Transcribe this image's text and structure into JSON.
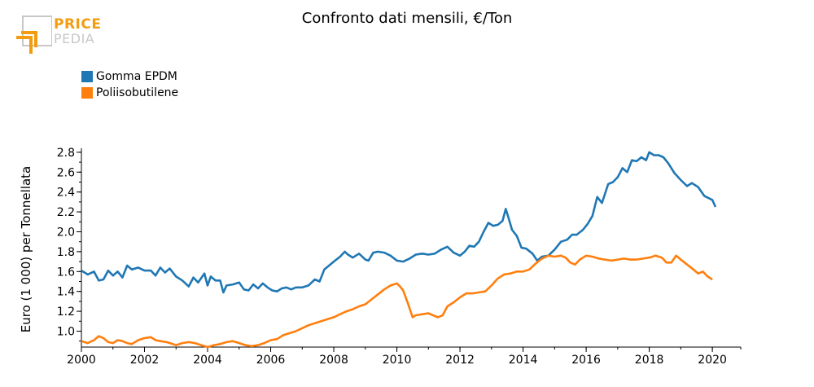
{
  "logo": {
    "line1": "PRICE",
    "line2": "PEDIA"
  },
  "chart_data": {
    "type": "line",
    "title": "Confronto dati mensili, €/Ton",
    "xlabel": "",
    "ylabel": "Euro (1 000) per Tonnellata",
    "xlim": [
      2000,
      2020.9
    ],
    "ylim": [
      0.84,
      2.84
    ],
    "x_ticks": [
      "2000",
      "2002",
      "2004",
      "2006",
      "2008",
      "2010",
      "2012",
      "2014",
      "2016",
      "2018",
      "2020"
    ],
    "y_ticks": [
      "1.0",
      "1.2",
      "1.4",
      "1.6",
      "1.8",
      "2.0",
      "2.2",
      "2.4",
      "2.6",
      "2.8"
    ],
    "legend_position": "top-left",
    "grid": false,
    "series": [
      {
        "name": "Gomma EPDM",
        "color": "#1f77b4",
        "points": [
          [
            2000.0,
            1.61
          ],
          [
            2000.2,
            1.57
          ],
          [
            2000.4,
            1.6
          ],
          [
            2000.55,
            1.51
          ],
          [
            2000.7,
            1.52
          ],
          [
            2000.85,
            1.61
          ],
          [
            2001.0,
            1.56
          ],
          [
            2001.15,
            1.6
          ],
          [
            2001.3,
            1.54
          ],
          [
            2001.45,
            1.66
          ],
          [
            2001.6,
            1.62
          ],
          [
            2001.8,
            1.64
          ],
          [
            2002.0,
            1.61
          ],
          [
            2002.2,
            1.61
          ],
          [
            2002.35,
            1.56
          ],
          [
            2002.5,
            1.64
          ],
          [
            2002.65,
            1.59
          ],
          [
            2002.8,
            1.63
          ],
          [
            2003.0,
            1.55
          ],
          [
            2003.2,
            1.51
          ],
          [
            2003.4,
            1.45
          ],
          [
            2003.55,
            1.54
          ],
          [
            2003.7,
            1.49
          ],
          [
            2003.9,
            1.58
          ],
          [
            2004.0,
            1.46
          ],
          [
            2004.1,
            1.55
          ],
          [
            2004.25,
            1.51
          ],
          [
            2004.4,
            1.51
          ],
          [
            2004.5,
            1.39
          ],
          [
            2004.6,
            1.46
          ],
          [
            2004.8,
            1.47
          ],
          [
            2005.0,
            1.49
          ],
          [
            2005.15,
            1.42
          ],
          [
            2005.3,
            1.41
          ],
          [
            2005.45,
            1.47
          ],
          [
            2005.6,
            1.43
          ],
          [
            2005.75,
            1.48
          ],
          [
            2005.9,
            1.44
          ],
          [
            2006.05,
            1.41
          ],
          [
            2006.2,
            1.4
          ],
          [
            2006.35,
            1.43
          ],
          [
            2006.5,
            1.44
          ],
          [
            2006.65,
            1.42
          ],
          [
            2006.8,
            1.44
          ],
          [
            2007.0,
            1.44
          ],
          [
            2007.2,
            1.46
          ],
          [
            2007.4,
            1.52
          ],
          [
            2007.55,
            1.5
          ],
          [
            2007.7,
            1.62
          ],
          [
            2007.85,
            1.66
          ],
          [
            2008.0,
            1.7
          ],
          [
            2008.2,
            1.75
          ],
          [
            2008.35,
            1.8
          ],
          [
            2008.45,
            1.77
          ],
          [
            2008.6,
            1.74
          ],
          [
            2008.8,
            1.78
          ],
          [
            2009.0,
            1.72
          ],
          [
            2009.1,
            1.71
          ],
          [
            2009.25,
            1.79
          ],
          [
            2009.4,
            1.8
          ],
          [
            2009.6,
            1.79
          ],
          [
            2009.8,
            1.76
          ],
          [
            2010.0,
            1.71
          ],
          [
            2010.2,
            1.7
          ],
          [
            2010.4,
            1.73
          ],
          [
            2010.6,
            1.77
          ],
          [
            2010.8,
            1.78
          ],
          [
            2011.0,
            1.77
          ],
          [
            2011.2,
            1.78
          ],
          [
            2011.4,
            1.82
          ],
          [
            2011.6,
            1.85
          ],
          [
            2011.8,
            1.79
          ],
          [
            2012.0,
            1.76
          ],
          [
            2012.15,
            1.8
          ],
          [
            2012.3,
            1.86
          ],
          [
            2012.45,
            1.85
          ],
          [
            2012.6,
            1.9
          ],
          [
            2012.75,
            2.0
          ],
          [
            2012.9,
            2.09
          ],
          [
            2013.05,
            2.06
          ],
          [
            2013.2,
            2.07
          ],
          [
            2013.35,
            2.11
          ],
          [
            2013.45,
            2.23
          ],
          [
            2013.55,
            2.13
          ],
          [
            2013.65,
            2.02
          ],
          [
            2013.8,
            1.96
          ],
          [
            2013.95,
            1.84
          ],
          [
            2014.1,
            1.83
          ],
          [
            2014.3,
            1.78
          ],
          [
            2014.45,
            1.71
          ],
          [
            2014.6,
            1.75
          ],
          [
            2014.8,
            1.76
          ],
          [
            2015.0,
            1.82
          ],
          [
            2015.2,
            1.9
          ],
          [
            2015.4,
            1.92
          ],
          [
            2015.55,
            1.97
          ],
          [
            2015.7,
            1.97
          ],
          [
            2015.9,
            2.02
          ],
          [
            2016.05,
            2.08
          ],
          [
            2016.2,
            2.16
          ],
          [
            2016.35,
            2.35
          ],
          [
            2016.5,
            2.29
          ],
          [
            2016.7,
            2.48
          ],
          [
            2016.85,
            2.5
          ],
          [
            2017.0,
            2.55
          ],
          [
            2017.15,
            2.64
          ],
          [
            2017.3,
            2.6
          ],
          [
            2017.45,
            2.72
          ],
          [
            2017.6,
            2.71
          ],
          [
            2017.75,
            2.75
          ],
          [
            2017.9,
            2.72
          ],
          [
            2018.0,
            2.8
          ],
          [
            2018.15,
            2.77
          ],
          [
            2018.3,
            2.77
          ],
          [
            2018.45,
            2.75
          ],
          [
            2018.6,
            2.69
          ],
          [
            2018.8,
            2.59
          ],
          [
            2019.0,
            2.52
          ],
          [
            2019.2,
            2.46
          ],
          [
            2019.35,
            2.49
          ],
          [
            2019.55,
            2.45
          ],
          [
            2019.75,
            2.36
          ],
          [
            2020.0,
            2.32
          ],
          [
            2020.1,
            2.25
          ]
        ]
      },
      {
        "name": "Poliisobutilene",
        "color": "#ff7f0e",
        "points": [
          [
            2000.0,
            0.9
          ],
          [
            2000.2,
            0.88
          ],
          [
            2000.4,
            0.91
          ],
          [
            2000.55,
            0.95
          ],
          [
            2000.7,
            0.93
          ],
          [
            2000.85,
            0.89
          ],
          [
            2001.0,
            0.88
          ],
          [
            2001.15,
            0.91
          ],
          [
            2001.3,
            0.9
          ],
          [
            2001.45,
            0.88
          ],
          [
            2001.6,
            0.87
          ],
          [
            2001.8,
            0.91
          ],
          [
            2002.0,
            0.93
          ],
          [
            2002.2,
            0.94
          ],
          [
            2002.35,
            0.91
          ],
          [
            2002.5,
            0.9
          ],
          [
            2002.7,
            0.89
          ],
          [
            2002.9,
            0.87
          ],
          [
            2003.0,
            0.86
          ],
          [
            2003.2,
            0.88
          ],
          [
            2003.4,
            0.89
          ],
          [
            2003.6,
            0.88
          ],
          [
            2003.8,
            0.86
          ],
          [
            2004.0,
            0.84
          ],
          [
            2004.2,
            0.86
          ],
          [
            2004.4,
            0.87
          ],
          [
            2004.6,
            0.89
          ],
          [
            2004.8,
            0.9
          ],
          [
            2005.0,
            0.88
          ],
          [
            2005.2,
            0.86
          ],
          [
            2005.4,
            0.85
          ],
          [
            2005.6,
            0.86
          ],
          [
            2005.8,
            0.88
          ],
          [
            2006.0,
            0.91
          ],
          [
            2006.2,
            0.92
          ],
          [
            2006.4,
            0.96
          ],
          [
            2006.6,
            0.98
          ],
          [
            2006.8,
            1.0
          ],
          [
            2007.0,
            1.03
          ],
          [
            2007.2,
            1.06
          ],
          [
            2007.4,
            1.08
          ],
          [
            2007.6,
            1.1
          ],
          [
            2007.8,
            1.12
          ],
          [
            2008.0,
            1.14
          ],
          [
            2008.2,
            1.17
          ],
          [
            2008.4,
            1.2
          ],
          [
            2008.6,
            1.22
          ],
          [
            2008.8,
            1.25
          ],
          [
            2009.0,
            1.27
          ],
          [
            2009.2,
            1.32
          ],
          [
            2009.4,
            1.37
          ],
          [
            2009.6,
            1.42
          ],
          [
            2009.8,
            1.46
          ],
          [
            2010.0,
            1.48
          ],
          [
            2010.1,
            1.45
          ],
          [
            2010.2,
            1.41
          ],
          [
            2010.35,
            1.28
          ],
          [
            2010.5,
            1.14
          ],
          [
            2010.6,
            1.16
          ],
          [
            2010.8,
            1.17
          ],
          [
            2011.0,
            1.18
          ],
          [
            2011.15,
            1.16
          ],
          [
            2011.3,
            1.14
          ],
          [
            2011.45,
            1.16
          ],
          [
            2011.6,
            1.25
          ],
          [
            2011.8,
            1.29
          ],
          [
            2012.0,
            1.34
          ],
          [
            2012.2,
            1.38
          ],
          [
            2012.4,
            1.38
          ],
          [
            2012.6,
            1.39
          ],
          [
            2012.8,
            1.4
          ],
          [
            2013.0,
            1.46
          ],
          [
            2013.2,
            1.53
          ],
          [
            2013.4,
            1.57
          ],
          [
            2013.6,
            1.58
          ],
          [
            2013.8,
            1.6
          ],
          [
            2014.0,
            1.6
          ],
          [
            2014.2,
            1.62
          ],
          [
            2014.4,
            1.68
          ],
          [
            2014.6,
            1.73
          ],
          [
            2014.8,
            1.76
          ],
          [
            2015.0,
            1.75
          ],
          [
            2015.2,
            1.76
          ],
          [
            2015.35,
            1.74
          ],
          [
            2015.5,
            1.69
          ],
          [
            2015.65,
            1.67
          ],
          [
            2015.8,
            1.72
          ],
          [
            2016.0,
            1.76
          ],
          [
            2016.2,
            1.75
          ],
          [
            2016.4,
            1.73
          ],
          [
            2016.6,
            1.72
          ],
          [
            2016.8,
            1.71
          ],
          [
            2017.0,
            1.72
          ],
          [
            2017.2,
            1.73
          ],
          [
            2017.4,
            1.72
          ],
          [
            2017.6,
            1.72
          ],
          [
            2017.8,
            1.73
          ],
          [
            2018.0,
            1.74
          ],
          [
            2018.2,
            1.76
          ],
          [
            2018.4,
            1.74
          ],
          [
            2018.55,
            1.69
          ],
          [
            2018.7,
            1.69
          ],
          [
            2018.85,
            1.76
          ],
          [
            2019.0,
            1.72
          ],
          [
            2019.2,
            1.67
          ],
          [
            2019.4,
            1.62
          ],
          [
            2019.55,
            1.58
          ],
          [
            2019.7,
            1.6
          ],
          [
            2019.85,
            1.55
          ],
          [
            2020.0,
            1.52
          ]
        ]
      }
    ]
  }
}
